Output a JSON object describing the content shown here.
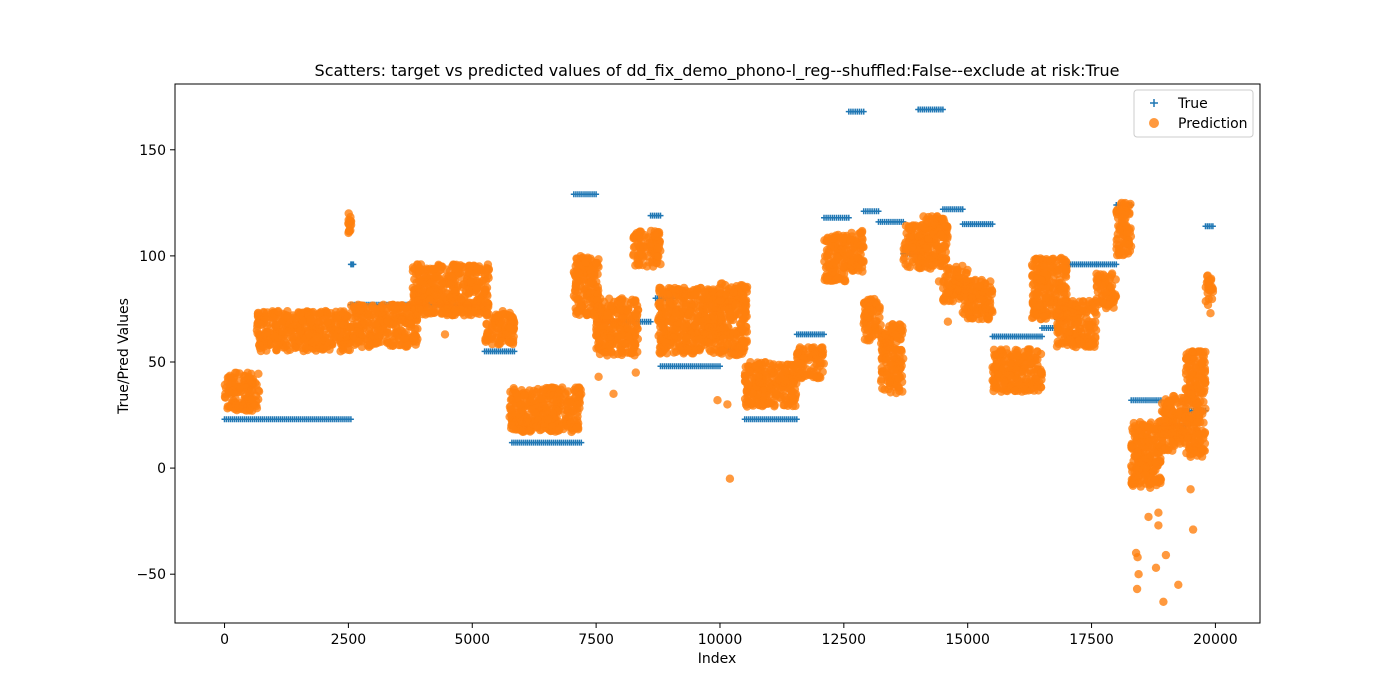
{
  "chart_data": {
    "type": "scatter",
    "title": "Scatters: target vs predicted values of dd_fix_demo_phono-l_reg--shuffled:False--exclude at risk:True",
    "xlabel": "Index",
    "ylabel": "True/Pred Values",
    "xlim": [
      -1000,
      20900
    ],
    "ylim": [
      -73,
      181
    ],
    "xticks": [
      0,
      2500,
      5000,
      7500,
      10000,
      12500,
      15000,
      17500,
      20000
    ],
    "xtick_labels": [
      "0",
      "2500",
      "5000",
      "7500",
      "10000",
      "12500",
      "15000",
      "17500",
      "20000"
    ],
    "yticks": [
      -50,
      0,
      50,
      100,
      150
    ],
    "ytick_labels": [
      "−50",
      "0",
      "50",
      "100",
      "150"
    ],
    "grid": false,
    "legend_position": "top-right",
    "series": [
      {
        "name": "True",
        "marker": "plus",
        "color": "#1f77b4",
        "segments": [
          {
            "x": [
              0,
              2550
            ],
            "y": 23
          },
          {
            "x": [
              2550,
              2600
            ],
            "y": 96
          },
          {
            "x": [
              2550,
              5300
            ],
            "y": 77
          },
          {
            "x": [
              5250,
              5850
            ],
            "y": 55
          },
          {
            "x": [
              5800,
              7200
            ],
            "y": 12
          },
          {
            "x": [
              7050,
              7500
            ],
            "y": 129
          },
          {
            "x": [
              7500,
              8600
            ],
            "y": 69
          },
          {
            "x": [
              8600,
              8800
            ],
            "y": 119
          },
          {
            "x": [
              8700,
              9050
            ],
            "y": 80
          },
          {
            "x": [
              8800,
              10000
            ],
            "y": 48
          },
          {
            "x": [
              10000,
              10500
            ],
            "y": 56
          },
          {
            "x": [
              10500,
              11550
            ],
            "y": 23
          },
          {
            "x": [
              11550,
              12100
            ],
            "y": 63
          },
          {
            "x": [
              12100,
              12600
            ],
            "y": 118
          },
          {
            "x": [
              12600,
              12900
            ],
            "y": 168
          },
          {
            "x": [
              12900,
              13200
            ],
            "y": 121
          },
          {
            "x": [
              13200,
              13700
            ],
            "y": 116
          },
          {
            "x": [
              13700,
              14000
            ],
            "y": 101
          },
          {
            "x": [
              14000,
              14500
            ],
            "y": 169
          },
          {
            "x": [
              14500,
              14900
            ],
            "y": 122
          },
          {
            "x": [
              14900,
              15500
            ],
            "y": 115
          },
          {
            "x": [
              15500,
              16500
            ],
            "y": 62
          },
          {
            "x": [
              16500,
              16800
            ],
            "y": 66
          },
          {
            "x": [
              16800,
              17000
            ],
            "y": 70
          },
          {
            "x": [
              17000,
              17600
            ],
            "y": 96
          },
          {
            "x": [
              17600,
              18000
            ],
            "y": 96
          },
          {
            "x": [
              18000,
              18300
            ],
            "y": 124
          },
          {
            "x": [
              18300,
              18900
            ],
            "y": 32
          },
          {
            "x": [
              18900,
              19400
            ],
            "y": 20
          },
          {
            "x": [
              19400,
              19800
            ],
            "y": 27
          },
          {
            "x": [
              19800,
              19950
            ],
            "y": 114
          }
        ]
      },
      {
        "name": "Prediction",
        "marker": "circle",
        "color": "#ff7f0e",
        "clusters": [
          {
            "x": [
              0,
              700
            ],
            "y": [
              27,
              45
            ]
          },
          {
            "x": [
              650,
              2550
            ],
            "y": [
              55,
              74
            ]
          },
          {
            "x": [
              2500,
              2560
            ],
            "y": [
              110,
              121
            ]
          },
          {
            "x": [
              2550,
              3900
            ],
            "y": [
              57,
              77
            ]
          },
          {
            "x": [
              3800,
              5350
            ],
            "y": [
              72,
              96
            ]
          },
          {
            "x": [
              5250,
              5850
            ],
            "y": [
              58,
              74
            ]
          },
          {
            "x": [
              5750,
              7200
            ],
            "y": [
              17,
              38
            ]
          },
          {
            "x": [
              7050,
              7550
            ],
            "y": [
              72,
              100
            ]
          },
          {
            "x": [
              7500,
              8350
            ],
            "y": [
              53,
              80
            ]
          },
          {
            "x": [
              8250,
              8800
            ],
            "y": [
              95,
              112
            ]
          },
          {
            "x": [
              8750,
              10050
            ],
            "y": [
              54,
              85
            ]
          },
          {
            "x": [
              10000,
              10550
            ],
            "y": [
              53,
              87
            ]
          },
          {
            "x": [
              10500,
              11550
            ],
            "y": [
              29,
              50
            ]
          },
          {
            "x": [
              11550,
              12100
            ],
            "y": [
              42,
              57
            ]
          },
          {
            "x": [
              12100,
              12600
            ],
            "y": [
              88,
              110
            ]
          },
          {
            "x": [
              12600,
              12900
            ],
            "y": [
              92,
              112
            ]
          },
          {
            "x": [
              12900,
              13250
            ],
            "y": [
              60,
              80
            ]
          },
          {
            "x": [
              13250,
              13700
            ],
            "y": [
              35,
              68
            ]
          },
          {
            "x": [
              13700,
              14100
            ],
            "y": [
              94,
              115
            ]
          },
          {
            "x": [
              14100,
              14600
            ],
            "y": [
              94,
              119
            ]
          },
          {
            "x": [
              14500,
              15000
            ],
            "y": [
              78,
              96
            ]
          },
          {
            "x": [
              14900,
              15500
            ],
            "y": [
              70,
              89
            ]
          },
          {
            "x": [
              15500,
              16500
            ],
            "y": [
              36,
              56
            ]
          },
          {
            "x": [
              16300,
              17000
            ],
            "y": [
              70,
              99
            ]
          },
          {
            "x": [
              16800,
              17600
            ],
            "y": [
              57,
              79
            ]
          },
          {
            "x": [
              17600,
              18000
            ],
            "y": [
              75,
              92
            ]
          },
          {
            "x": [
              18000,
              18300
            ],
            "y": [
              100,
              125
            ]
          },
          {
            "x": [
              18300,
              18900
            ],
            "y": [
              -10,
              22
            ]
          },
          {
            "x": [
              18900,
              19400
            ],
            "y": [
              8,
              35
            ]
          },
          {
            "x": [
              19400,
              19800
            ],
            "y": [
              5,
              55
            ]
          },
          {
            "x": [
              19800,
              19950
            ],
            "y": [
              76,
              91
            ]
          }
        ],
        "outliers": [
          {
            "x": 10200,
            "y": -5
          },
          {
            "x": 9950,
            "y": 32
          },
          {
            "x": 10150,
            "y": 30
          },
          {
            "x": 4450,
            "y": 63
          },
          {
            "x": 7550,
            "y": 43
          },
          {
            "x": 7850,
            "y": 35
          },
          {
            "x": 8300,
            "y": 45
          },
          {
            "x": 14420,
            "y": 88
          },
          {
            "x": 14600,
            "y": 69
          },
          {
            "x": 18400,
            "y": -40
          },
          {
            "x": 18430,
            "y": -42
          },
          {
            "x": 18450,
            "y": -50
          },
          {
            "x": 18420,
            "y": -57
          },
          {
            "x": 18650,
            "y": -23
          },
          {
            "x": 18850,
            "y": -21
          },
          {
            "x": 18850,
            "y": -27
          },
          {
            "x": 18800,
            "y": -47
          },
          {
            "x": 19000,
            "y": -41
          },
          {
            "x": 18950,
            "y": -63
          },
          {
            "x": 19250,
            "y": -55
          },
          {
            "x": 19550,
            "y": -29
          },
          {
            "x": 19500,
            "y": -10
          },
          {
            "x": 19900,
            "y": 73
          }
        ]
      }
    ]
  }
}
